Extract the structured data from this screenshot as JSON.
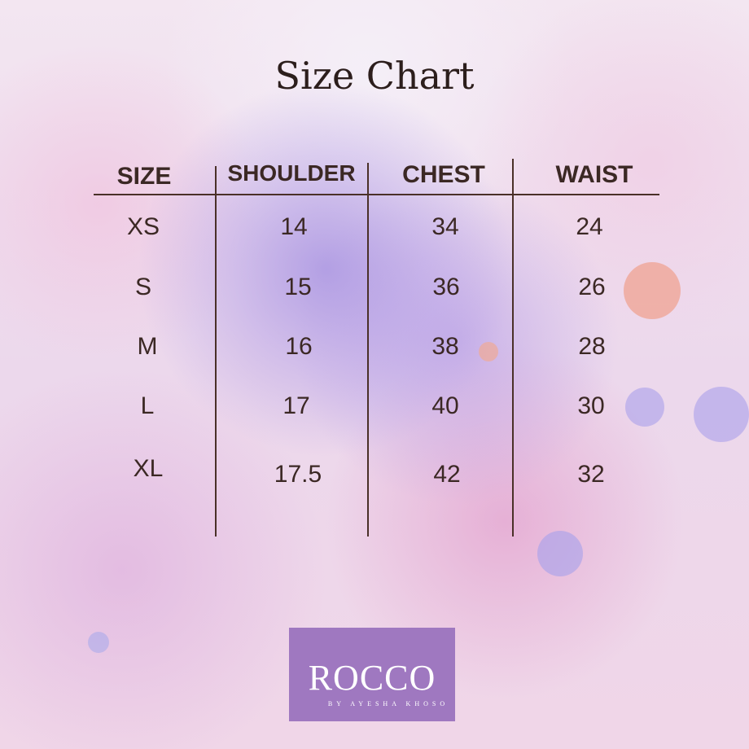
{
  "title": "Size Chart",
  "table": {
    "headers": [
      "SIZE",
      "SHOULDER",
      "CHEST",
      "WAIST"
    ],
    "rows": [
      [
        "XS",
        "14",
        "34",
        "24"
      ],
      [
        "S",
        "15",
        "36",
        "26"
      ],
      [
        "M",
        "16",
        "38",
        "28"
      ],
      [
        "L",
        "17",
        "40",
        "30"
      ],
      [
        "XL",
        "17.5",
        "42",
        "32"
      ]
    ]
  },
  "logo": {
    "name": "ROCCO",
    "tagline": "BY AYESHA KHOSO",
    "background": "#9f78c0"
  },
  "colors": {
    "text": "#3b2824",
    "lines": "#4a3028"
  }
}
